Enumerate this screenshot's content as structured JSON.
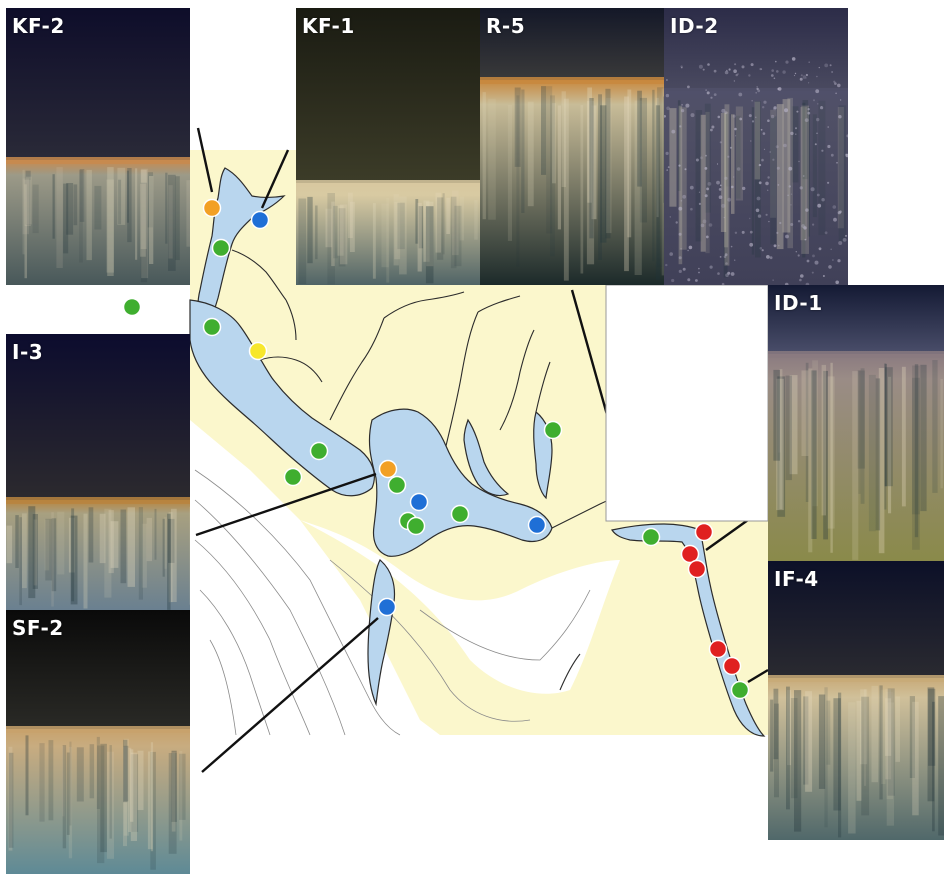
{
  "panels": [
    {
      "id": "kf2",
      "label": "KF-2",
      "colors": {
        "water_top": "#0e0d2a",
        "water_bottom": "#2a2a38",
        "interface": "#c88a4e",
        "sediment_top": "#9c9a88",
        "sediment_bottom": "#48585a"
      }
    },
    {
      "id": "kf1",
      "label": "KF-1",
      "colors": {
        "water_top": "#1a1b12",
        "water_bottom": "#3c3c28",
        "interface": "#d8c8a0",
        "sediment_top": "#d8caa2",
        "sediment_bottom": "#506466"
      }
    },
    {
      "id": "r5",
      "label": "R-5",
      "colors": {
        "water_top": "#141828",
        "water_bottom": "#3a3a3a",
        "interface": "#c8883e",
        "sediment_top": "#c8bc98",
        "sediment_bottom": "#1c2a2a"
      }
    },
    {
      "id": "id2",
      "label": "ID-2",
      "colors": {
        "water_top": "#2c2c48",
        "water_bottom": "#4a4a60",
        "interface": "#50506a",
        "sediment_top": "#505066",
        "sediment_bottom": "#404058"
      }
    },
    {
      "id": "id1",
      "label": "ID-1",
      "colors": {
        "water_top": "#141a34",
        "water_bottom": "#4a4e6a",
        "interface": "#8a7a80",
        "sediment_top": "#9a8c86",
        "sediment_bottom": "#8a8a4a"
      }
    },
    {
      "id": "i3",
      "label": "I-3",
      "colors": {
        "water_top": "#0c0c2e",
        "water_bottom": "#2c2a2e",
        "interface": "#b8843e",
        "sediment_top": "#a8a080",
        "sediment_bottom": "#6a8090"
      }
    },
    {
      "id": "sf2",
      "label": "SF-2",
      "colors": {
        "water_top": "#0a0a0a",
        "water_bottom": "#2a2a26",
        "interface": "#c8a26c",
        "sediment_top": "#c8ac80",
        "sediment_bottom": "#5e8a96"
      }
    },
    {
      "id": "if4",
      "label": "IF-4",
      "colors": {
        "water_top": "#0c1028",
        "water_bottom": "#2a2a30",
        "interface": "#c8aa78",
        "sediment_top": "#d0c09a",
        "sediment_bottom": "#50686a"
      }
    }
  ],
  "map": {
    "colors": {
      "land": "#fbf7cc",
      "water_shallow": "#b9d6ee",
      "water_deep": "#ffffff",
      "coastline": "#2c2c2c",
      "contours": "#8a8a8a"
    }
  },
  "stations": [
    {
      "id": "s01",
      "category": "orange"
    },
    {
      "id": "s02",
      "category": "blue"
    },
    {
      "id": "s03",
      "category": "green"
    },
    {
      "id": "s04",
      "category": "green"
    },
    {
      "id": "s05",
      "category": "green"
    },
    {
      "id": "s06",
      "category": "yellow"
    },
    {
      "id": "s07",
      "category": "green"
    },
    {
      "id": "s08",
      "category": "green"
    },
    {
      "id": "s09",
      "category": "orange"
    },
    {
      "id": "s10",
      "category": "green"
    },
    {
      "id": "s11",
      "category": "blue"
    },
    {
      "id": "s12",
      "category": "green"
    },
    {
      "id": "s13",
      "category": "green"
    },
    {
      "id": "s14",
      "category": "green"
    },
    {
      "id": "s15",
      "category": "green"
    },
    {
      "id": "s16",
      "category": "blue"
    },
    {
      "id": "s17",
      "category": "blue"
    },
    {
      "id": "s18",
      "category": "green"
    },
    {
      "id": "s19",
      "category": "red"
    },
    {
      "id": "s20",
      "category": "red"
    },
    {
      "id": "s21",
      "category": "red"
    },
    {
      "id": "s22",
      "category": "red"
    },
    {
      "id": "s23",
      "category": "red"
    },
    {
      "id": "s24",
      "category": "green"
    }
  ],
  "marker_colors": {
    "green": "#3fae2f",
    "blue": "#1f6fd6",
    "orange": "#f2a024",
    "yellow": "#f7e72c",
    "red": "#e02020"
  }
}
